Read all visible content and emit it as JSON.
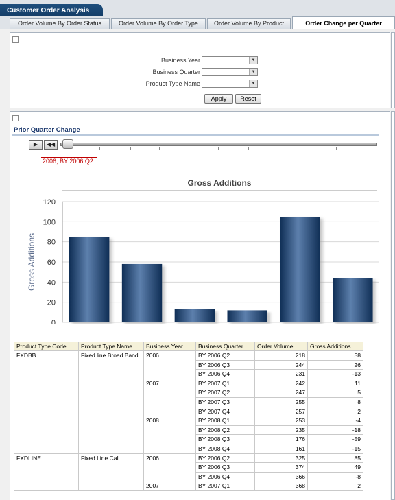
{
  "dashboard": {
    "title": "Customer Order Analysis"
  },
  "tabs": [
    {
      "label": "Order Volume By Order Status"
    },
    {
      "label": "Order Volume By Order Type"
    },
    {
      "label": "Order Volume By Product"
    },
    {
      "label": "Order Change per Quarter"
    }
  ],
  "prompts": {
    "business_year_label": "Business Year",
    "business_quarter_label": "Business Quarter",
    "product_type_name_label": "Product Type Name",
    "business_year_value": "",
    "business_quarter_value": "",
    "product_type_name_value": "",
    "apply_label": "Apply",
    "reset_label": "Reset"
  },
  "section": {
    "title": "Prior Quarter Change",
    "slider_value": "2006, BY 2006 Q2",
    "play_icon": "play-icon",
    "rewind_icon": "rewind-icon"
  },
  "chart_data": {
    "type": "bar",
    "title": "Gross Additions",
    "xlabel": "",
    "ylabel": "Gross Additions",
    "ylim": [
      0,
      120
    ],
    "yticks": [
      "120",
      "100",
      "80",
      "60",
      "40",
      "20",
      "0"
    ],
    "categories": [
      "",
      "",
      "",
      "",
      "",
      ""
    ],
    "values": [
      85,
      58,
      13,
      12,
      105,
      44
    ],
    "bar_color": "#1e4573",
    "grid": true
  },
  "table": {
    "headers": [
      "Product Type Code",
      "Product Type Name",
      "Business Year",
      "Business Quarter",
      "Order Volume",
      "Gross Additions"
    ],
    "rows": [
      [
        "FXDBB",
        "Fixed line Broad Band",
        "2006",
        "BY 2006 Q2",
        "218",
        "58"
      ],
      [
        "",
        "",
        "",
        "BY 2006 Q3",
        "244",
        "26"
      ],
      [
        "",
        "",
        "",
        "BY 2006 Q4",
        "231",
        "-13"
      ],
      [
        "",
        "",
        "2007",
        "BY 2007 Q1",
        "242",
        "11"
      ],
      [
        "",
        "",
        "",
        "BY 2007 Q2",
        "247",
        "5"
      ],
      [
        "",
        "",
        "",
        "BY 2007 Q3",
        "255",
        "8"
      ],
      [
        "",
        "",
        "",
        "BY 2007 Q4",
        "257",
        "2"
      ],
      [
        "",
        "",
        "2008",
        "BY 2008 Q1",
        "253",
        "-4"
      ],
      [
        "",
        "",
        "",
        "BY 2008 Q2",
        "235",
        "-18"
      ],
      [
        "",
        "",
        "",
        "BY 2008 Q3",
        "176",
        "-59"
      ],
      [
        "",
        "",
        "",
        "BY 2008 Q4",
        "161",
        "-15"
      ],
      [
        "FXDLINE",
        "Fixed Line Call",
        "2006",
        "BY 2006 Q2",
        "325",
        "85"
      ],
      [
        "",
        "",
        "",
        "BY 2006 Q3",
        "374",
        "49"
      ],
      [
        "",
        "",
        "",
        "BY 2006 Q4",
        "366",
        "-8"
      ],
      [
        "",
        "",
        "2007",
        "BY 2007 Q1",
        "368",
        "2"
      ]
    ]
  }
}
